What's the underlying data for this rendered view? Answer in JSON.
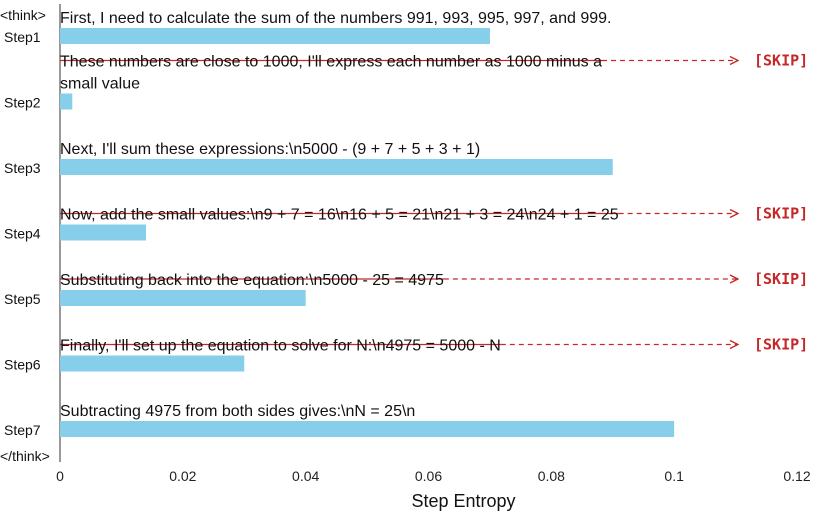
{
  "chart_data": {
    "type": "bar",
    "orientation": "horizontal",
    "title": "",
    "xlabel": "Step Entropy",
    "ylabel": "",
    "xlim": [
      0,
      0.12
    ],
    "xticks": [
      {
        "value": 0,
        "label": "0"
      },
      {
        "value": 0.02,
        "label": "0.02"
      },
      {
        "value": 0.04,
        "label": "0.04"
      },
      {
        "value": 0.06,
        "label": "0.06"
      },
      {
        "value": 0.08,
        "label": "0.08"
      },
      {
        "value": 0.1,
        "label": "0.1"
      },
      {
        "value": 0.12,
        "label": "0.12"
      }
    ],
    "start_label": "<think>",
    "end_label": "</think>",
    "skip_label": "[SKIP]",
    "bar_color": "#87ceeb",
    "skip_color": "#c62828",
    "grid": false,
    "steps": [
      {
        "label": "Step1",
        "value": 0.07,
        "skipped": false,
        "text_lines": [
          "First, I need to calculate the sum of the numbers 991, 993, 995, 997, and 999."
        ]
      },
      {
        "label": "Step2",
        "value": 0.002,
        "skipped": true,
        "text_lines": [
          "These numbers are close to 1000, I'll express each number as 1000 minus a",
          "small value"
        ]
      },
      {
        "label": "Step3",
        "value": 0.09,
        "skipped": false,
        "text_lines": [
          "Next, I'll sum these expressions:\\n5000 - (9 + 7 + 5 + 3 + 1)"
        ]
      },
      {
        "label": "Step4",
        "value": 0.014,
        "skipped": true,
        "text_lines": [
          "Now, add the small values:\\n9 + 7 = 16\\n16 + 5 = 21\\n21 + 3 = 24\\n24 + 1 = 25"
        ]
      },
      {
        "label": "Step5",
        "value": 0.04,
        "skipped": true,
        "text_lines": [
          "Substituting back into the equation:\\n5000 - 25 = 4975"
        ]
      },
      {
        "label": "Step6",
        "value": 0.03,
        "skipped": true,
        "text_lines": [
          "Finally, I'll set up the equation to solve for N:\\n4975 = 5000 - N"
        ]
      },
      {
        "label": "Step7",
        "value": 0.1,
        "skipped": false,
        "text_lines": [
          "Subtracting 4975 from both sides gives:\\nN = 25\\n"
        ]
      }
    ]
  }
}
